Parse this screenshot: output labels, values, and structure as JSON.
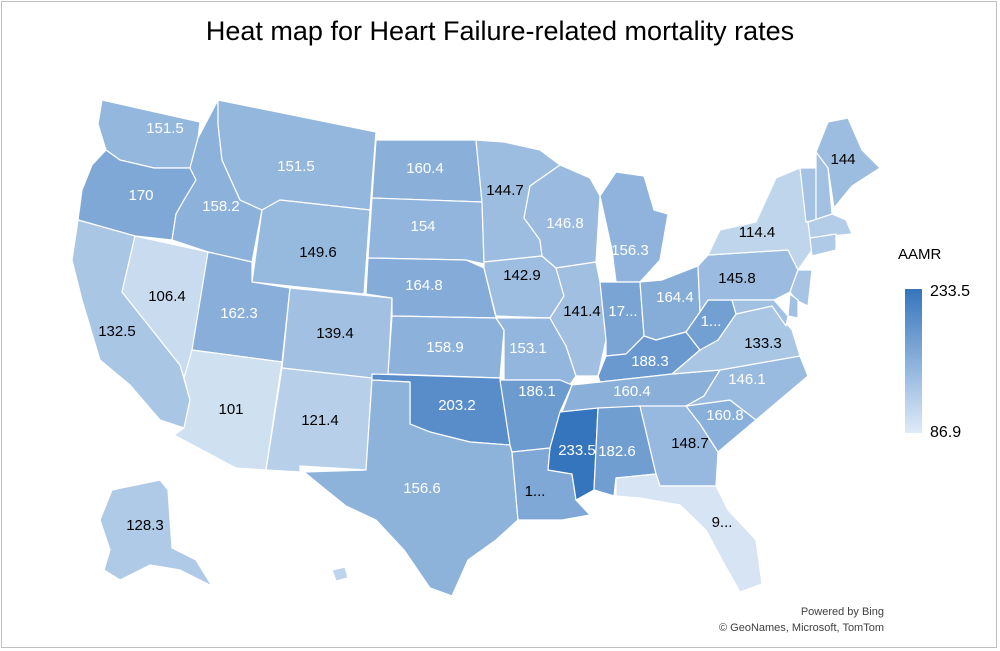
{
  "title": "Heat map for Heart Failure-related mortality rates",
  "legend": {
    "title": "AAMR",
    "max": "233.5",
    "min": "86.9",
    "max_color": "#3575bd",
    "min_color": "#dfebf7"
  },
  "credits": {
    "line1": "Powered by Bing",
    "line2": "© GeoNames, Microsoft, TomTom"
  },
  "states": [
    {
      "id": "WA",
      "value": 151.5,
      "label": "151.5"
    },
    {
      "id": "OR",
      "value": 170,
      "label": "170"
    },
    {
      "id": "CA",
      "value": 132.5,
      "label": "132.5"
    },
    {
      "id": "NV",
      "value": 106.4,
      "label": "106.4"
    },
    {
      "id": "ID",
      "value": 158.2,
      "label": "158.2"
    },
    {
      "id": "MT",
      "value": 151.5,
      "label": "151.5"
    },
    {
      "id": "WY",
      "value": 149.6,
      "label": "149.6"
    },
    {
      "id": "UT",
      "value": 162.3,
      "label": "162.3"
    },
    {
      "id": "AZ",
      "value": 101,
      "label": "101"
    },
    {
      "id": "CO",
      "value": 139.4,
      "label": "139.4"
    },
    {
      "id": "NM",
      "value": 121.4,
      "label": "121.4"
    },
    {
      "id": "ND",
      "value": 160.4,
      "label": "160.4"
    },
    {
      "id": "SD",
      "value": 154,
      "label": "154"
    },
    {
      "id": "NE",
      "value": 164.8,
      "label": "164.8"
    },
    {
      "id": "KS",
      "value": 158.9,
      "label": "158.9"
    },
    {
      "id": "OK",
      "value": 203.2,
      "label": "203.2"
    },
    {
      "id": "TX",
      "value": 156.6,
      "label": "156.6"
    },
    {
      "id": "MN",
      "value": 144.7,
      "label": "144.7"
    },
    {
      "id": "IA",
      "value": 142.9,
      "label": "142.9"
    },
    {
      "id": "MO",
      "value": 153.1,
      "label": "153.1"
    },
    {
      "id": "AR",
      "value": 186.1,
      "label": "186.1"
    },
    {
      "id": "LA",
      "value": null,
      "label": "1..."
    },
    {
      "id": "WI",
      "value": 146.8,
      "label": "146.8"
    },
    {
      "id": "IL",
      "value": 141.4,
      "label": "141.4"
    },
    {
      "id": "MI",
      "value": 156.3,
      "label": "156.3"
    },
    {
      "id": "IN",
      "value": null,
      "label": "17..."
    },
    {
      "id": "OH",
      "value": 164.4,
      "label": "164.4"
    },
    {
      "id": "KY",
      "value": 188.3,
      "label": "188.3"
    },
    {
      "id": "TN",
      "value": 160.4,
      "label": "160.4"
    },
    {
      "id": "MS",
      "value": 233.5,
      "label": "233.5"
    },
    {
      "id": "AL",
      "value": 182.6,
      "label": "182.6"
    },
    {
      "id": "GA",
      "value": 148.7,
      "label": "148.7"
    },
    {
      "id": "FL",
      "value": null,
      "label": "9..."
    },
    {
      "id": "SC",
      "value": 160.8,
      "label": "160.8"
    },
    {
      "id": "NC",
      "value": 146.1,
      "label": "146.1"
    },
    {
      "id": "VA",
      "value": 133.3,
      "label": "133.3"
    },
    {
      "id": "WV",
      "value": null,
      "label": "1..."
    },
    {
      "id": "PA",
      "value": 145.8,
      "label": "145.8"
    },
    {
      "id": "NY",
      "value": 114.4,
      "label": "114.4"
    },
    {
      "id": "ME",
      "value": 144,
      "label": "144"
    },
    {
      "id": "AK",
      "value": 128.3,
      "label": "128.3"
    },
    {
      "id": "HI",
      "value": null,
      "label": ""
    },
    {
      "id": "VT",
      "value": null,
      "label": ""
    },
    {
      "id": "NH",
      "value": null,
      "label": ""
    },
    {
      "id": "MA",
      "value": null,
      "label": ""
    },
    {
      "id": "CT",
      "value": null,
      "label": ""
    },
    {
      "id": "NJ",
      "value": null,
      "label": ""
    },
    {
      "id": "MD",
      "value": null,
      "label": ""
    },
    {
      "id": "DE",
      "value": null,
      "label": ""
    }
  ]
}
